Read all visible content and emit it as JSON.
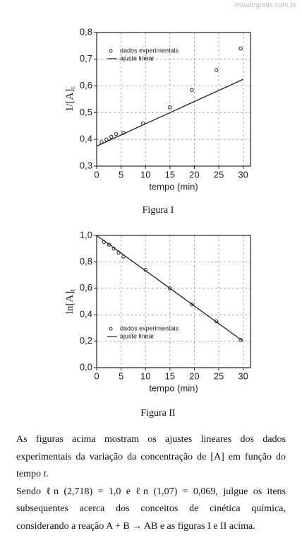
{
  "watermark": "estudegratis.com.br",
  "captions": [
    "Figura I",
    "Figura II"
  ],
  "paragraphs": [
    [
      "As figuras acima mostram os ajustes lineares dos dados experimentais da variação da concentração de [A] em função do tempo ",
      "t",
      "."
    ],
    [
      "Sendo ℓn (2,718) = 1,0 e ℓn (1,07) = 0,069, julgue os itens subsequentes acerca dos conceitos de cinética química, considerando a reação A + B → AB e as figuras I e II acima."
    ]
  ],
  "chart_data": [
    {
      "type": "scatter",
      "xlabel": "tempo (min)",
      "ylabel": "1/[A]",
      "ylabel_sub": "t",
      "xlim": [
        0,
        31.5
      ],
      "xticks": [
        0,
        5,
        10,
        15,
        20,
        25,
        30
      ],
      "ylim": [
        0.3,
        0.8
      ],
      "yticks": [
        {
          "value": 0.3,
          "label": "0,3"
        },
        {
          "value": 0.4,
          "label": "0,4"
        },
        {
          "value": 0.5,
          "label": "0,5"
        },
        {
          "value": 0.6,
          "label": "0,6"
        },
        {
          "value": 0.7,
          "label": "0,7"
        },
        {
          "value": 0.8,
          "label": "0,8"
        }
      ],
      "grid": true,
      "legend": "upper left",
      "series": [
        {
          "name": "dados experimentais",
          "kind": "scatter",
          "color": "#222",
          "x": [
            1,
            2,
            3,
            4,
            5.5,
            9.5,
            15,
            19.5,
            24.5,
            29.5
          ],
          "values": [
            0.39,
            0.4,
            0.41,
            0.42,
            0.425,
            0.46,
            0.52,
            0.585,
            0.66,
            0.74
          ]
        },
        {
          "name": "ajuste linear",
          "kind": "line",
          "color": "#222",
          "x": [
            0,
            30
          ],
          "values": [
            0.375,
            0.625
          ]
        }
      ]
    },
    {
      "type": "scatter",
      "xlabel": "tempo (min)",
      "ylabel": "ln[A]",
      "ylabel_sub": "t",
      "xlim": [
        0,
        31.5
      ],
      "xticks": [
        0,
        5,
        10,
        15,
        20,
        25,
        30
      ],
      "ylim": [
        0,
        1.0
      ],
      "yticks": [
        {
          "value": 0,
          "label": "0,0"
        },
        {
          "value": 0.2,
          "label": "0,2"
        },
        {
          "value": 0.4,
          "label": "0,4"
        },
        {
          "value": 0.6,
          "label": "0,6"
        },
        {
          "value": 0.8,
          "label": "0,8"
        },
        {
          "value": 1.0,
          "label": "1,0"
        }
      ],
      "grid": true,
      "legend": "lower left",
      "series": [
        {
          "name": "dados experimentais",
          "kind": "scatter",
          "color": "#222",
          "x": [
            1.5,
            2.5,
            3.5,
            4.5,
            5.5,
            10,
            15,
            19.5,
            24.5,
            29.5
          ],
          "values": [
            0.95,
            0.93,
            0.9,
            0.87,
            0.84,
            0.74,
            0.6,
            0.48,
            0.35,
            0.21
          ]
        },
        {
          "name": "ajuste linear",
          "kind": "line",
          "color": "#222",
          "x": [
            0,
            30
          ],
          "values": [
            1.0,
            0.2
          ]
        }
      ]
    }
  ]
}
